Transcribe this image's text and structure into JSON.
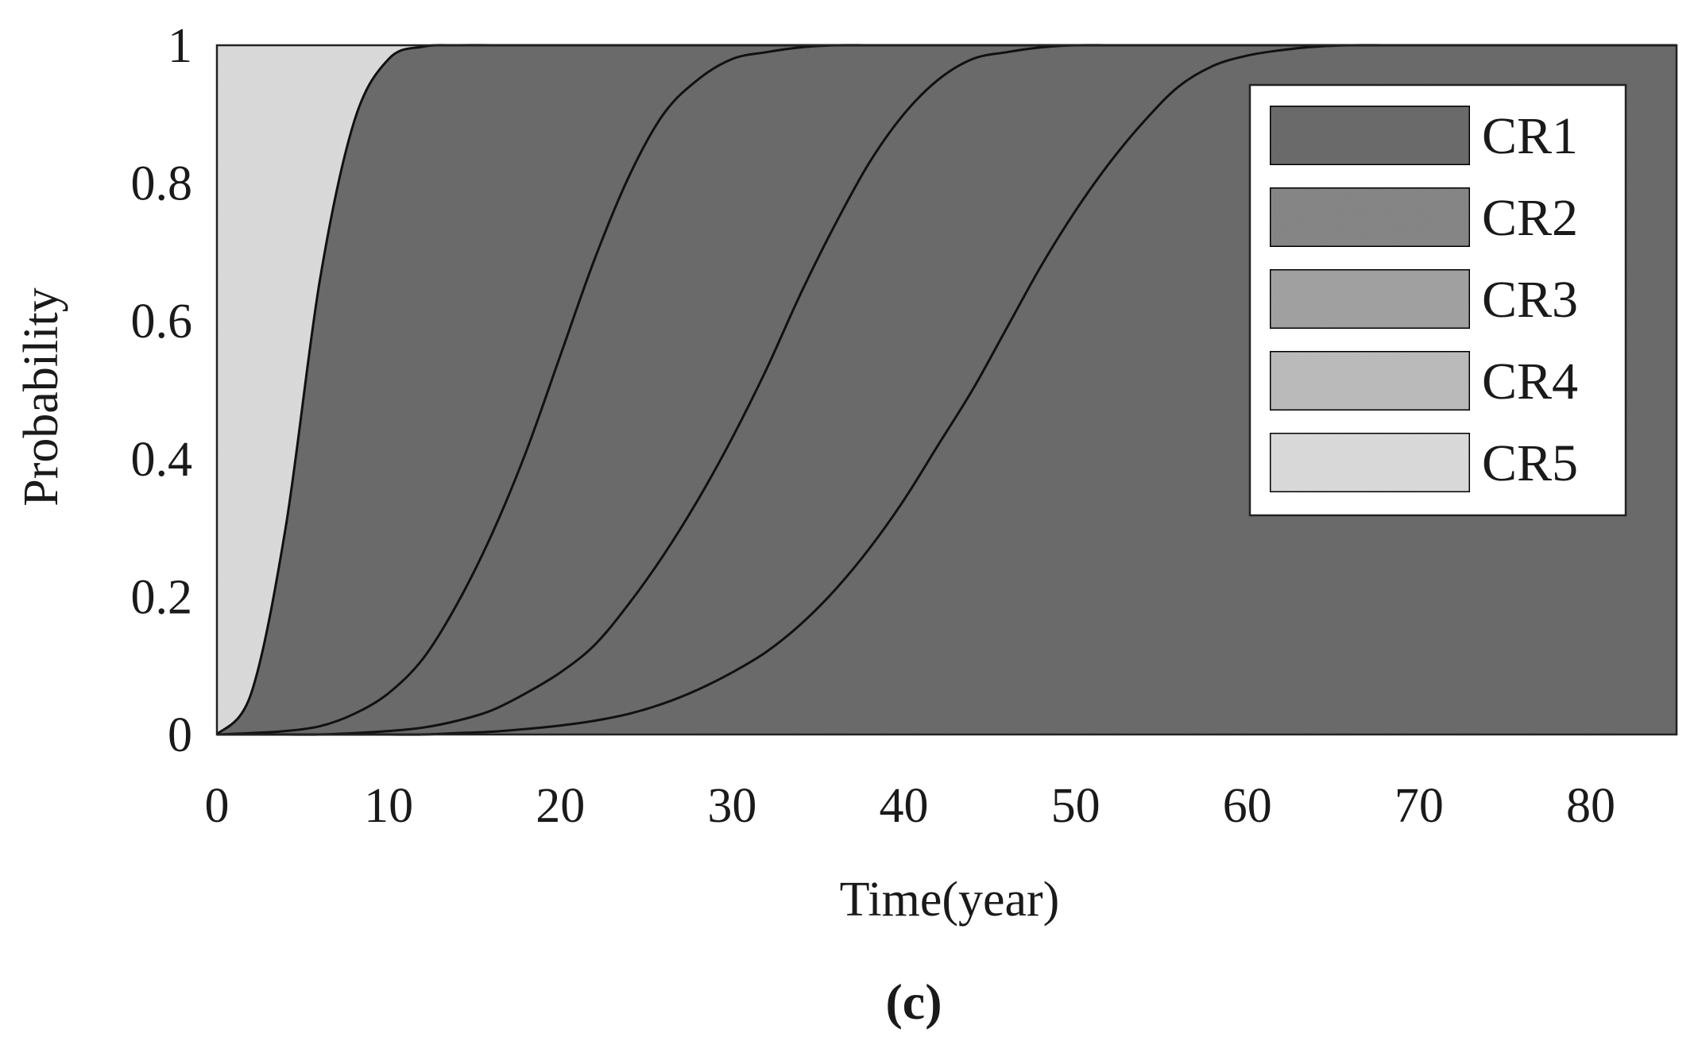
{
  "chart_data": {
    "type": "area",
    "title": "",
    "xlabel": "Time(year)",
    "ylabel": "Probability",
    "panel_label": "(c)",
    "xlim": [
      0,
      85
    ],
    "ylim": [
      0,
      1
    ],
    "xticks": [
      0,
      10,
      20,
      30,
      40,
      50,
      60,
      70,
      80
    ],
    "xtick_labels": [
      "0",
      "10",
      "20",
      "30",
      "40",
      "50",
      "60",
      "70",
      "80"
    ],
    "yticks": [
      0,
      0.2,
      0.4,
      0.6,
      0.8,
      1
    ],
    "ytick_labels": [
      "0",
      "0.2",
      "0.4",
      "0.6",
      "0.8",
      "1"
    ],
    "grid": false,
    "legend_position": "top-right",
    "x": [
      0,
      2,
      4,
      6,
      8,
      10,
      12,
      14,
      16,
      18,
      20,
      22,
      24,
      26,
      28,
      30,
      32,
      34,
      36,
      38,
      40,
      42,
      44,
      46,
      48,
      50,
      52,
      54,
      56,
      58,
      60,
      62,
      64,
      66,
      68,
      70,
      72,
      74,
      76,
      78,
      80,
      82,
      85
    ],
    "series": [
      {
        "name": "CR1",
        "color": "#6e6e6e",
        "values": [
          0,
          0.06,
          0.3,
          0.66,
          0.89,
          0.98,
          0.998,
          1,
          1,
          1,
          1,
          1,
          1,
          1,
          1,
          1,
          1,
          1,
          1,
          1,
          1,
          1,
          1,
          1,
          1,
          1,
          1,
          1,
          1,
          1,
          1,
          1,
          1,
          1,
          1,
          1,
          1,
          1,
          1,
          1,
          1,
          1,
          1
        ]
      },
      {
        "name": "CR2",
        "color": "#8a8a8a",
        "values": [
          0,
          0.002,
          0.005,
          0.012,
          0.03,
          0.06,
          0.11,
          0.19,
          0.29,
          0.41,
          0.55,
          0.69,
          0.81,
          0.9,
          0.95,
          0.98,
          0.99,
          0.997,
          1,
          1,
          1,
          1,
          1,
          1,
          1,
          1,
          1,
          1,
          1,
          1,
          1,
          1,
          1,
          1,
          1,
          1,
          1,
          1,
          1,
          1,
          1,
          1,
          1
        ]
      },
      {
        "name": "CR3",
        "color": "#a6a6a6",
        "values": [
          0,
          0,
          0,
          0,
          0.002,
          0.005,
          0.01,
          0.02,
          0.035,
          0.06,
          0.09,
          0.13,
          0.19,
          0.26,
          0.34,
          0.43,
          0.53,
          0.64,
          0.74,
          0.83,
          0.9,
          0.95,
          0.98,
          0.99,
          0.997,
          1,
          1,
          1,
          1,
          1,
          1,
          1,
          1,
          1,
          1,
          1,
          1,
          1,
          1,
          1,
          1,
          1,
          1
        ]
      },
      {
        "name": "CR4",
        "color": "#c0c0c0",
        "values": [
          0,
          0,
          0,
          0,
          0,
          0,
          0,
          0.002,
          0.004,
          0.008,
          0.013,
          0.02,
          0.03,
          0.045,
          0.065,
          0.09,
          0.12,
          0.16,
          0.21,
          0.27,
          0.34,
          0.42,
          0.5,
          0.59,
          0.68,
          0.76,
          0.83,
          0.89,
          0.94,
          0.97,
          0.985,
          0.993,
          0.998,
          1,
          1,
          1,
          1,
          1,
          1,
          1,
          1,
          1,
          1
        ]
      },
      {
        "name": "CR5",
        "color": "#e0e0e0",
        "values": [
          1,
          1,
          1,
          1,
          1,
          1,
          1,
          1,
          1,
          1,
          1,
          1,
          1,
          1,
          1,
          1,
          1,
          1,
          1,
          1,
          1,
          1,
          1,
          1,
          1,
          1,
          1,
          1,
          1,
          1,
          1,
          1,
          1,
          1,
          1,
          1,
          1,
          1,
          1,
          1,
          1,
          1,
          1
        ]
      }
    ]
  }
}
